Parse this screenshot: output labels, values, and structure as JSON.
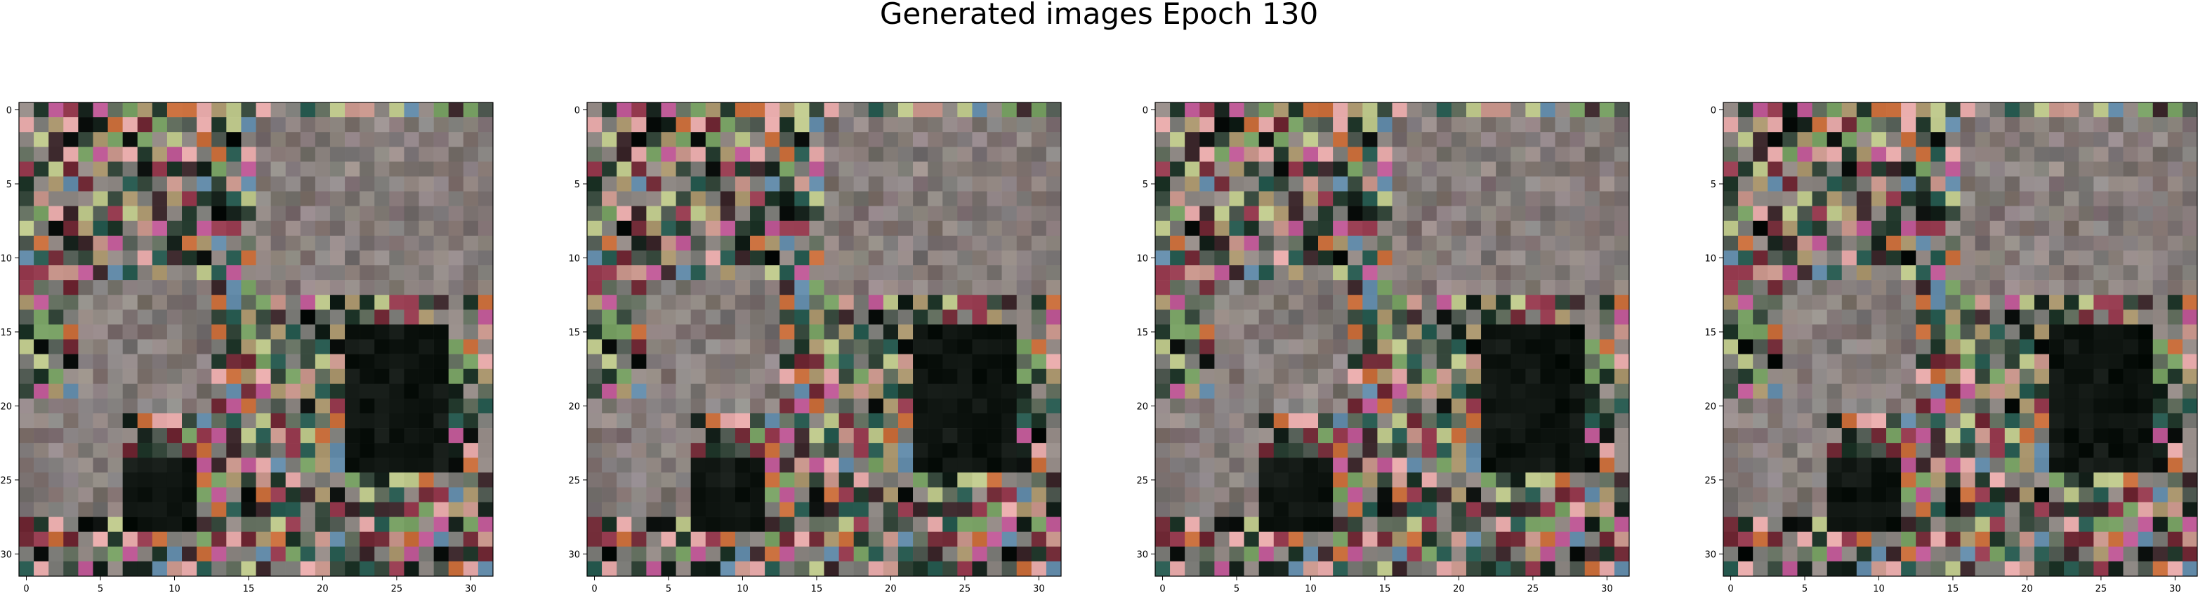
{
  "figure": {
    "title": "Generated images Epoch 130"
  },
  "chart_data": [
    {
      "type": "heatmap",
      "title": "",
      "xlabel": "",
      "ylabel": "",
      "xlim": [
        -0.5,
        31.5
      ],
      "ylim": [
        31.5,
        -0.5
      ],
      "x_ticks": [
        0,
        5,
        10,
        15,
        20,
        25,
        30
      ],
      "y_ticks": [
        0,
        5,
        10,
        15,
        20,
        25,
        30
      ],
      "grid": false
    },
    {
      "type": "heatmap",
      "title": "",
      "xlabel": "",
      "ylabel": "",
      "xlim": [
        -0.5,
        31.5
      ],
      "ylim": [
        31.5,
        -0.5
      ],
      "x_ticks": [
        0,
        5,
        10,
        15,
        20,
        25,
        30
      ],
      "y_ticks": [
        0,
        5,
        10,
        15,
        20,
        25,
        30
      ],
      "grid": false
    },
    {
      "type": "heatmap",
      "title": "",
      "xlabel": "",
      "ylabel": "",
      "xlim": [
        -0.5,
        31.5
      ],
      "ylim": [
        31.5,
        -0.5
      ],
      "x_ticks": [
        0,
        5,
        10,
        15,
        20,
        25,
        30
      ],
      "y_ticks": [
        0,
        5,
        10,
        15,
        20,
        25,
        30
      ],
      "grid": false
    },
    {
      "type": "heatmap",
      "title": "",
      "xlabel": "",
      "ylabel": "",
      "xlim": [
        -0.5,
        31.5
      ],
      "ylim": [
        31.5,
        -0.5
      ],
      "x_ticks": [
        0,
        5,
        10,
        15,
        20,
        25,
        30
      ],
      "y_ticks": [
        0,
        5,
        10,
        15,
        20,
        25,
        30
      ],
      "grid": false
    }
  ]
}
